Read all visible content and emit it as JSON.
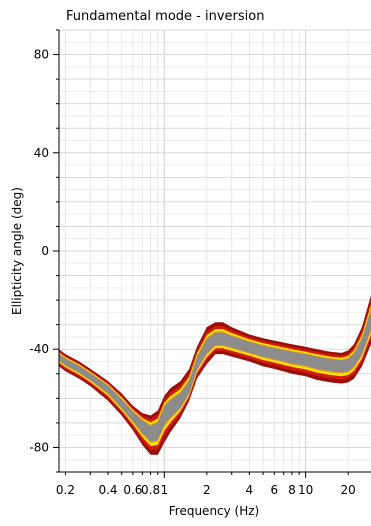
{
  "chart_data": {
    "type": "line",
    "title": "Fundamental mode - inversion",
    "xlabel": "Frequency (Hz)",
    "ylabel": "Ellipticity angle (deg)",
    "x_scale": "log",
    "xlim": [
      0.18,
      29
    ],
    "ylim": [
      -90,
      90
    ],
    "grid": true,
    "y_ticks": [
      80,
      40,
      0,
      -40,
      -80
    ],
    "x_tick_labels": [
      {
        "value": 0.2,
        "label": "0.2"
      },
      {
        "value": 0.4,
        "label": "0.4"
      },
      {
        "value": 0.6,
        "label": "0.6"
      },
      {
        "value": 0.8,
        "label": "0.8"
      },
      {
        "value": 1,
        "label": "1"
      },
      {
        "value": 2,
        "label": "2"
      },
      {
        "value": 4,
        "label": "4"
      },
      {
        "value": 6,
        "label": "6"
      },
      {
        "value": 8,
        "label": "8"
      },
      {
        "value": 10,
        "label": "10"
      },
      {
        "value": 20,
        "label": "20"
      }
    ],
    "band_colors": {
      "outer": "#9b0f0a",
      "middle": "#d21c12",
      "inner": "#ffe600",
      "core": "#8c8c8c",
      "core_edge": "#f2a31c"
    },
    "series": [
      {
        "x": [
          0.18,
          0.2,
          0.25,
          0.3,
          0.4,
          0.5,
          0.6,
          0.7,
          0.8,
          0.9,
          1.0,
          1.1,
          1.3,
          1.5,
          1.7,
          2.0,
          2.3,
          2.6,
          3.0,
          4.0,
          5.0,
          6.0,
          8.0,
          10.0,
          12.0,
          15.0,
          18.0,
          20.0,
          22.0,
          25.0,
          29.0
        ],
        "center": [
          -43,
          -45,
          -48,
          -51,
          -56,
          -62,
          -67,
          -71,
          -74,
          -73,
          -66,
          -64,
          -61,
          -56,
          -46,
          -39,
          -36,
          -36,
          -37,
          -39,
          -40.5,
          -41.5,
          -43,
          -44,
          -45,
          -46,
          -46.5,
          -46,
          -44,
          -39,
          -28
        ],
        "lower": [
          -47,
          -49,
          -52,
          -55,
          -61,
          -67,
          -73,
          -79,
          -83,
          -83,
          -78,
          -74,
          -68,
          -61,
          -52,
          -46,
          -42,
          -42,
          -43,
          -45,
          -47,
          -48,
          -50,
          -51,
          -52.5,
          -53.5,
          -54,
          -53.5,
          -52,
          -47,
          -38
        ],
        "upper": [
          -40,
          -42,
          -45,
          -48,
          -53,
          -58,
          -63,
          -66,
          -67,
          -65,
          -59,
          -56,
          -53,
          -48,
          -39,
          -31,
          -29,
          -29,
          -31,
          -34,
          -35.5,
          -36.5,
          -38,
          -39,
          -40,
          -41,
          -41.5,
          -40.5,
          -38,
          -31,
          -18
        ]
      }
    ]
  }
}
